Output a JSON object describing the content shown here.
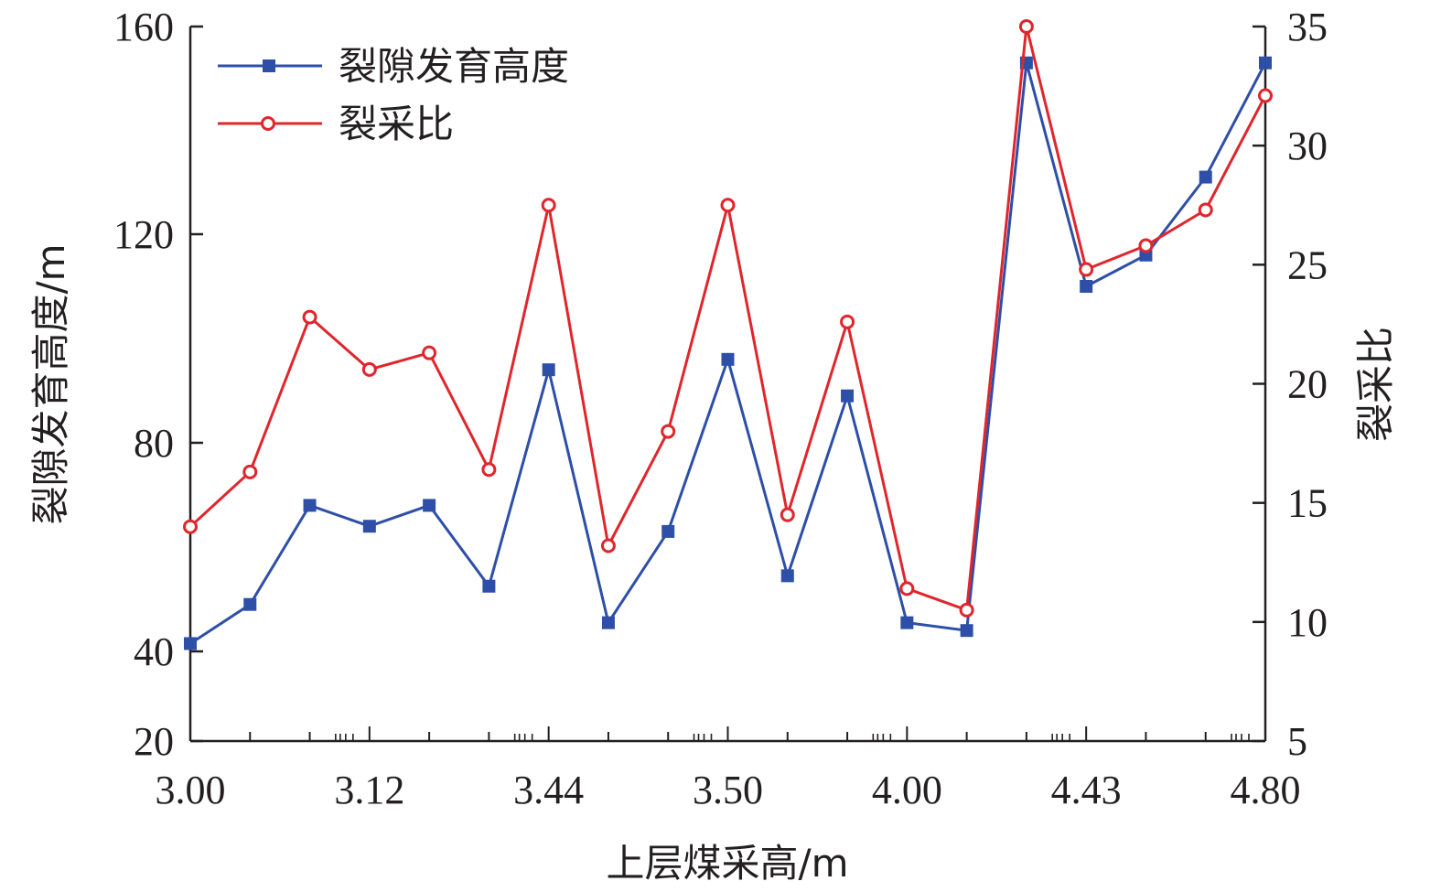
{
  "chart_data": {
    "type": "line",
    "x_tick_labels": [
      "3.00",
      "3.12",
      "3.44",
      "3.50",
      "4.00",
      "4.43",
      "4.80"
    ],
    "xlabel": "上层煤采高/m",
    "ylabel_left": "裂隙发育高度/m",
    "ylabel_right": "裂采比",
    "ylim_left": [
      20,
      160
    ],
    "ylim_right": [
      5,
      35
    ],
    "yticks_left": [
      20,
      40,
      80,
      120,
      160
    ],
    "yticks_right": [
      5,
      10,
      15,
      20,
      25,
      30,
      35
    ],
    "point_count": 19,
    "legend_position": "top-left",
    "series": [
      {
        "name": "裂隙发育高度",
        "axis": "left",
        "color": "#2e4fa8",
        "marker": "square",
        "values": [
          41.5,
          49,
          68,
          64,
          68,
          52.5,
          94,
          45.5,
          63,
          96,
          54.5,
          89,
          45.5,
          44,
          153,
          110,
          116,
          131,
          153
        ]
      },
      {
        "name": "裂采比",
        "axis": "right",
        "color": "#e0262c",
        "marker": "circle-open",
        "values": [
          14,
          16.3,
          22.8,
          20.6,
          21.3,
          16.4,
          27.5,
          13.2,
          18,
          27.5,
          14.5,
          22.6,
          11.4,
          10.5,
          35,
          24.8,
          25.8,
          27.3,
          32.1
        ]
      }
    ]
  }
}
